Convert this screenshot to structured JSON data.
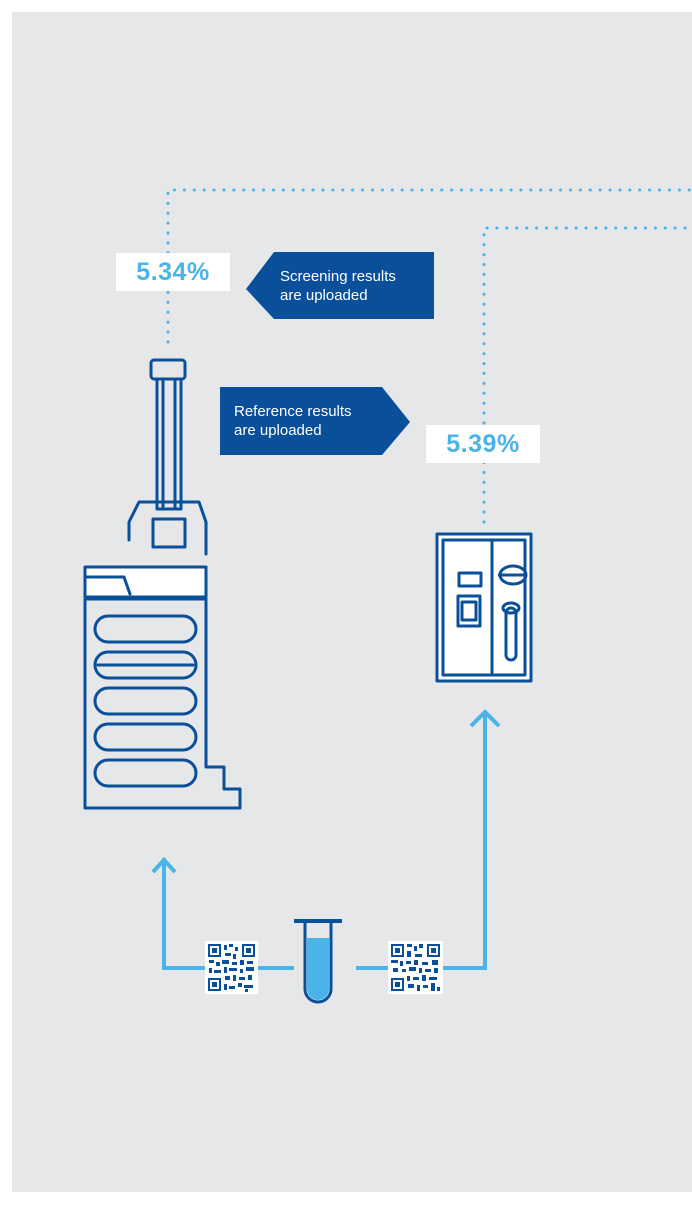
{
  "colors": {
    "background": "#e6e7e8",
    "dark_blue": "#0a4f9a",
    "light_blue": "#4ab3e8",
    "white": "#ffffff"
  },
  "screening": {
    "value": "5.34%",
    "line1": "Screening results",
    "line2": "are uploaded"
  },
  "reference": {
    "value": "5.39%",
    "line1": "Reference results",
    "line2": "are uploaded"
  },
  "icons": {
    "screening_device": "handheld-analyzer-icon",
    "reference_device": "lab-analyzer-icon",
    "sample": "test-tube-icon",
    "barcode": "qr-code-icon"
  }
}
